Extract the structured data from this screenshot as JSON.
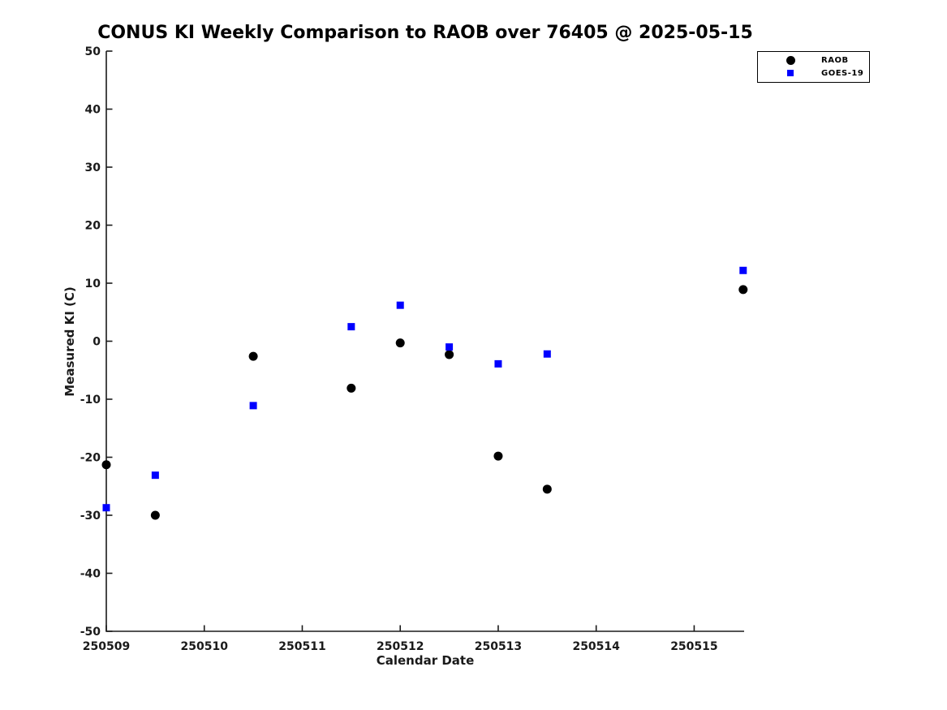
{
  "chart_data": {
    "type": "scatter",
    "title": "CONUS KI Weekly Comparison to RAOB over 76405 @ 2025-05-15",
    "xlabel": "Calendar Date",
    "ylabel": "Measured KI (C)",
    "xlim": [
      250509,
      250515.51
    ],
    "ylim": [
      -50,
      50
    ],
    "xticks": [
      250509,
      250510,
      250511,
      250512,
      250513,
      250514,
      250515
    ],
    "xtick_labels": [
      "250509",
      "250510",
      "250511",
      "250512",
      "250513",
      "250514",
      "250515"
    ],
    "yticks": [
      -50,
      -40,
      -30,
      -20,
      -10,
      0,
      10,
      20,
      30,
      40,
      50
    ],
    "grid": false,
    "legend_position": "top-right-outside-plot",
    "axis_color": "#1a1a1a",
    "series": [
      {
        "name": "RAOB",
        "marker": "circle",
        "color": "#000000",
        "points": [
          [
            250509.0,
            -21.3
          ],
          [
            250509.5,
            -30.0
          ],
          [
            250510.5,
            -2.6
          ],
          [
            250511.5,
            -8.1
          ],
          [
            250512.0,
            -0.3
          ],
          [
            250512.5,
            -2.3
          ],
          [
            250513.0,
            -19.8
          ],
          [
            250513.5,
            -25.5
          ],
          [
            250515.5,
            8.9
          ]
        ]
      },
      {
        "name": "GOES-19",
        "marker": "square",
        "color": "#0000ff",
        "points": [
          [
            250509.0,
            -28.7
          ],
          [
            250509.5,
            -23.1
          ],
          [
            250510.5,
            -11.1
          ],
          [
            250511.5,
            2.5
          ],
          [
            250512.0,
            6.2
          ],
          [
            250512.5,
            -1.0
          ],
          [
            250513.0,
            -3.9
          ],
          [
            250513.5,
            -2.2
          ],
          [
            250515.5,
            12.2
          ]
        ]
      }
    ]
  }
}
